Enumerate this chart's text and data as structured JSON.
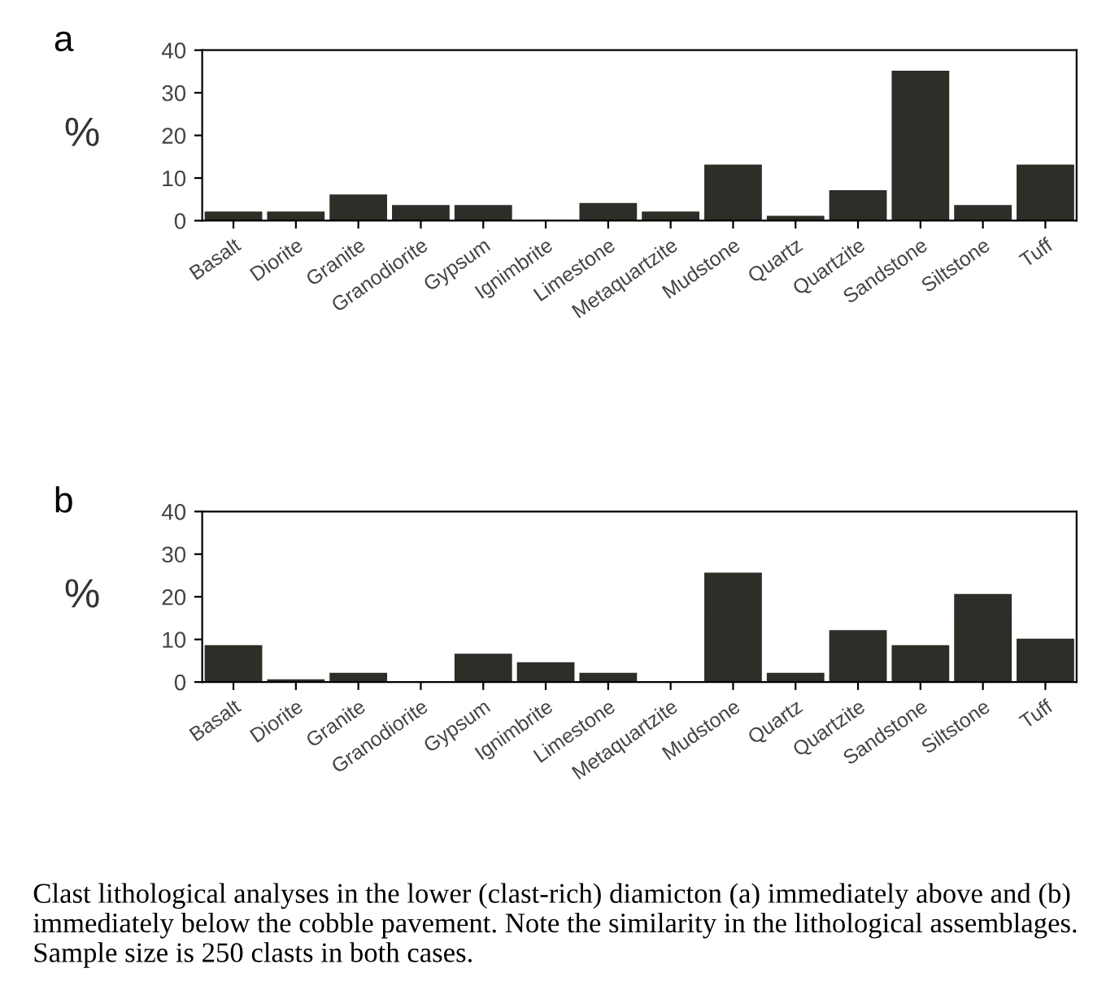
{
  "chart_data": [
    {
      "type": "bar",
      "title": "a",
      "ylabel": "%",
      "categories": [
        "Basalt",
        "Diorite",
        "Granite",
        "Granodiorite",
        "Gypsum",
        "Ignimbrite",
        "Limestone",
        "Metaquartzite",
        "Mudstone",
        "Quartz",
        "Quartzite",
        "Sandstone",
        "Siltstone",
        "Tuff"
      ],
      "values": [
        2,
        2,
        6,
        3.5,
        3.5,
        0,
        4,
        2,
        13,
        1,
        7,
        35,
        3.5,
        13
      ],
      "color": "#2e2d27",
      "ylim": [
        0,
        40
      ],
      "yticks": [
        0,
        10,
        20,
        30,
        40
      ]
    },
    {
      "type": "bar",
      "title": "b",
      "ylabel": "%",
      "categories": [
        "Basalt",
        "Diorite",
        "Granite",
        "Granodiorite",
        "Gypsum",
        "Ignimbrite",
        "Limestone",
        "Metaquartzite",
        "Mudstone",
        "Quartz",
        "Quartzite",
        "Sandstone",
        "Siltstone",
        "Tuff"
      ],
      "values": [
        8.5,
        0.5,
        2,
        0,
        6.5,
        4.5,
        2,
        0,
        25.5,
        2,
        12,
        8.5,
        20.5,
        10
      ],
      "color": "#2e2d27",
      "ylim": [
        0,
        40
      ],
      "yticks": [
        0,
        10,
        20,
        30,
        40
      ],
      "annotations": [
        "Clast lithological analyses in the lower (clast-rich) diamicton (a) immediately above and (b) immediately below the cobble pavement. Note the similarity in the lithological assemblages. Sample size is 250 clasts in both cases."
      ]
    }
  ]
}
